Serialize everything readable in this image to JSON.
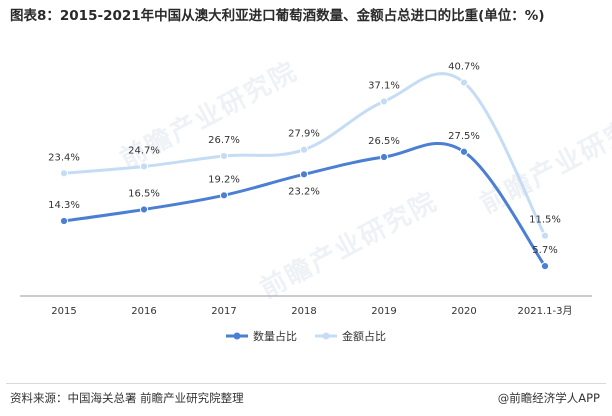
{
  "title": "图表8：2015-2021年中国从澳大利亚进口葡萄酒数量、金额占总进口的比重(单位：%)",
  "watermark_text": "前瞻产业研究院",
  "source": "资料来源：中国海关总署 前瞻产业研究院整理",
  "brand": "@前瞻经济学人APP",
  "chart_data": {
    "type": "line",
    "categories": [
      "2015",
      "2016",
      "2017",
      "2018",
      "2019",
      "2020",
      "2021.1-3月"
    ],
    "series": [
      {
        "name": "数量占比",
        "values": [
          14.3,
          16.5,
          19.2,
          23.2,
          26.5,
          27.5,
          5.7
        ],
        "labels": [
          "14.3%",
          "16.5%",
          "19.2%",
          "23.2%",
          "26.5%",
          "27.5%",
          "5.7%"
        ],
        "color": "#4a7fd4"
      },
      {
        "name": "金额占比",
        "values": [
          23.4,
          24.7,
          26.7,
          27.9,
          37.1,
          40.7,
          11.5
        ],
        "labels": [
          "23.4%",
          "24.7%",
          "26.7%",
          "27.9%",
          "37.1%",
          "40.7%",
          "11.5%"
        ],
        "color": "#c5dcf5"
      }
    ],
    "ylim": [
      0,
      45
    ],
    "grid": false,
    "legend_position": "bottom"
  }
}
